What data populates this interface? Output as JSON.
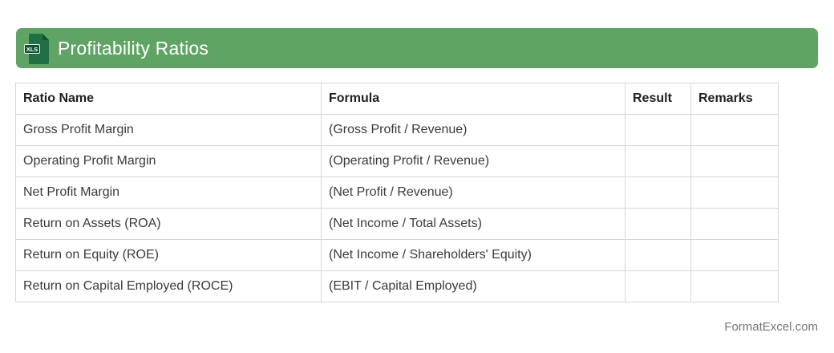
{
  "title_bar": {
    "title": "Profitability Ratios",
    "icon_label": "XLS",
    "bar_color": "#5fa465",
    "icon_body_color": "#1f7044",
    "icon_band_color": "#0f5132"
  },
  "table": {
    "columns": [
      "Ratio Name",
      "Formula",
      "Result",
      "Remarks"
    ],
    "rows": [
      {
        "ratio": "Gross Profit Margin",
        "formula": "(Gross Profit / Revenue)",
        "result": "",
        "remarks": ""
      },
      {
        "ratio": "Operating Profit Margin",
        "formula": "(Operating Profit / Revenue)",
        "result": "",
        "remarks": ""
      },
      {
        "ratio": "Net Profit Margin",
        "formula": "(Net Profit / Revenue)",
        "result": "",
        "remarks": ""
      },
      {
        "ratio": "Return on Assets (ROA)",
        "formula": "(Net Income / Total Assets)",
        "result": "",
        "remarks": ""
      },
      {
        "ratio": "Return on Equity (ROE)",
        "formula": "(Net Income / Shareholders' Equity)",
        "result": "",
        "remarks": ""
      },
      {
        "ratio": "Return on Capital Employed (ROCE)",
        "formula": "(EBIT / Capital Employed)",
        "result": "",
        "remarks": ""
      }
    ]
  },
  "footer": {
    "credit": "FormatExcel.com"
  }
}
